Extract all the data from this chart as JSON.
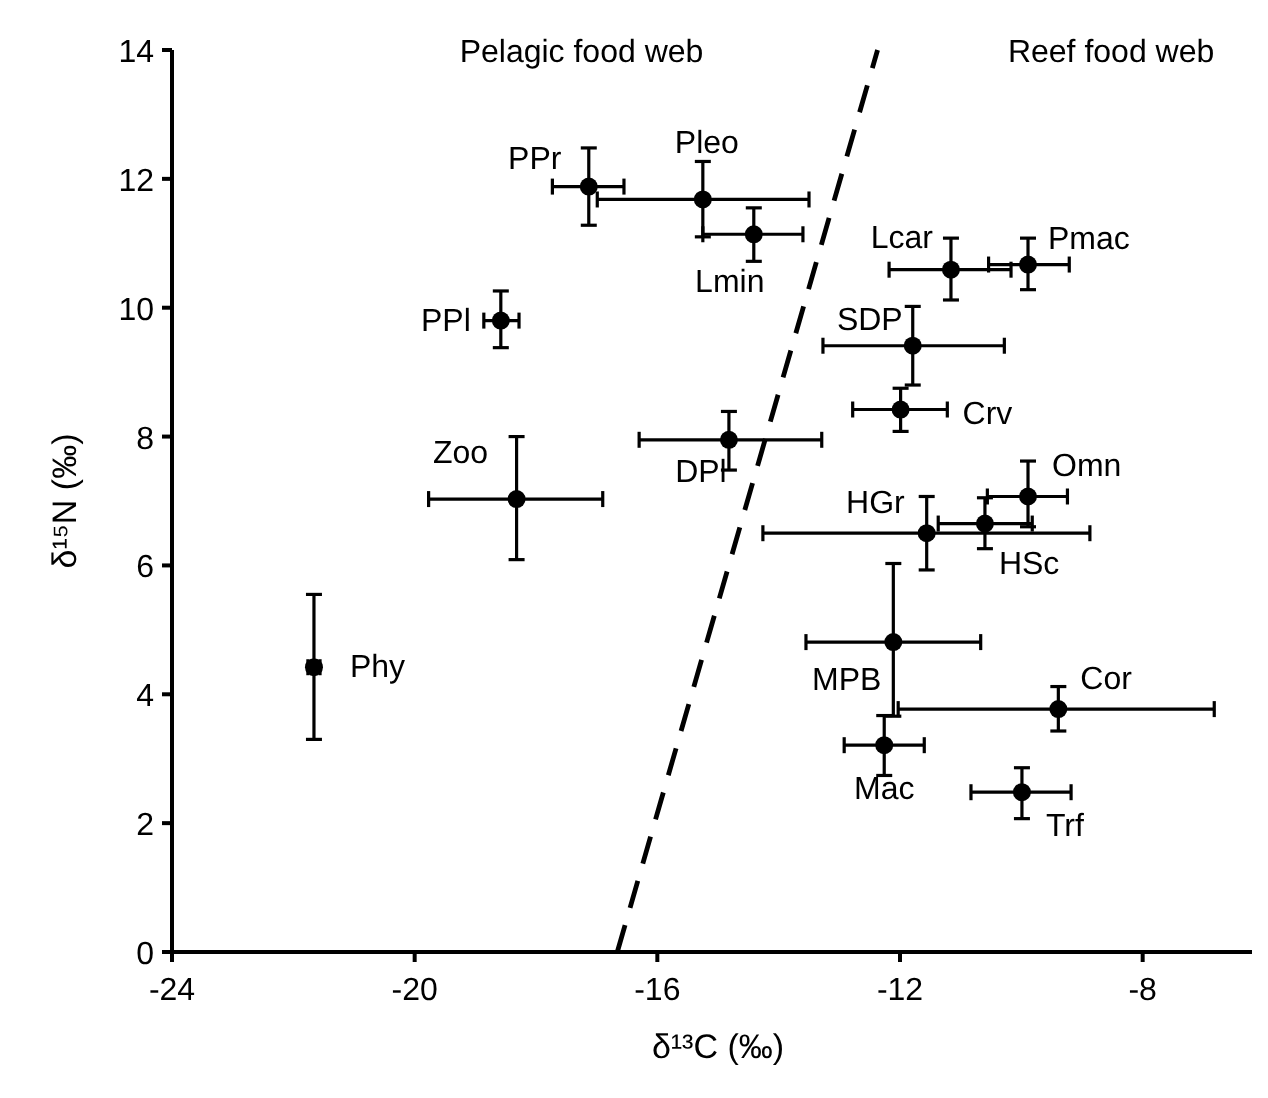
{
  "chart_data": {
    "type": "scatter",
    "xlabel": "δ¹³C  (‰)",
    "ylabel": "δ¹⁵N  (‰)",
    "xlim": [
      -24,
      -6
    ],
    "xticks": [
      -24,
      -20,
      -16,
      -12,
      -8
    ],
    "ylim": [
      0,
      14
    ],
    "yticks": [
      0,
      2,
      4,
      6,
      8,
      10,
      12,
      14
    ],
    "grid": false,
    "series": [
      {
        "color": "#000000",
        "marker": "circle",
        "x": [
          -21.66,
          -18.32,
          -17.13,
          -18.58,
          -15.25,
          -14.41,
          -11.16,
          -9.89,
          -11.79,
          -11.99,
          -14.82,
          -9.89,
          -10.6,
          -11.56,
          -12.11,
          -9.39,
          -12.26,
          -9.99
        ],
        "values": [
          4.42,
          7.03,
          11.88,
          9.8,
          11.68,
          11.14,
          10.59,
          10.67,
          9.41,
          8.42,
          7.95,
          7.07,
          6.65,
          6.5,
          4.81,
          3.77,
          3.21,
          2.48
        ],
        "errors": [
          [
            3.3,
            5.55
          ],
          [
            6.09,
            8.0
          ],
          [
            11.28,
            12.48
          ],
          [
            9.38,
            10.26
          ],
          [
            11.1,
            12.27
          ],
          [
            10.72,
            11.55
          ],
          [
            10.12,
            11.08
          ],
          [
            10.28,
            11.08
          ],
          [
            8.8,
            10.02
          ],
          [
            8.08,
            8.75
          ],
          [
            7.48,
            8.39
          ],
          [
            6.6,
            7.62
          ],
          [
            6.26,
            7.05
          ],
          [
            5.93,
            7.07
          ],
          [
            3.66,
            6.03
          ],
          [
            3.43,
            4.12
          ],
          [
            2.74,
            3.67
          ],
          [
            2.07,
            2.86
          ]
        ],
        "xerrors": [
          [
            -21.76,
            -21.56
          ],
          [
            -19.77,
            -16.9
          ],
          [
            -17.73,
            -16.55
          ],
          [
            -18.86,
            -18.28
          ],
          [
            -16.99,
            -13.5
          ],
          [
            -15.25,
            -13.6
          ],
          [
            -12.18,
            -10.17
          ],
          [
            -10.54,
            -9.21
          ],
          [
            -13.27,
            -10.28
          ],
          [
            -12.78,
            -11.22
          ],
          [
            -16.3,
            -13.29
          ],
          [
            -10.56,
            -9.24
          ],
          [
            -11.37,
            -9.82
          ],
          [
            -14.26,
            -8.87
          ],
          [
            -13.55,
            -10.67
          ],
          [
            -12.03,
            -6.82
          ],
          [
            -12.92,
            -11.6
          ],
          [
            -10.83,
            -9.18
          ]
        ]
      },
      {
        "type": "line",
        "color": "#000000",
        "line_style": "dashed",
        "marker": "none",
        "x": [
          -16.66,
          -12.37
        ],
        "values": [
          0,
          14
        ]
      }
    ],
    "annotations": [
      "Pelagic food web",
      "Reef food web",
      {
        "text": "Phy",
        "x": -21.66,
        "y": 4.42
      },
      {
        "text": "Zoo",
        "x": -18.32,
        "y": 7.03
      },
      {
        "text": "PPr",
        "x": -17.13,
        "y": 11.88
      },
      {
        "text": "PPl",
        "x": -18.58,
        "y": 9.8
      },
      {
        "text": "Pleo",
        "x": -15.25,
        "y": 11.68
      },
      {
        "text": "Lmin",
        "x": -14.41,
        "y": 11.14
      },
      {
        "text": "Lcar",
        "x": -11.16,
        "y": 10.59
      },
      {
        "text": "Pmac",
        "x": -9.89,
        "y": 10.67
      },
      {
        "text": "SDP",
        "x": -11.79,
        "y": 9.41
      },
      {
        "text": "Crv",
        "x": -11.99,
        "y": 8.42
      },
      {
        "text": "DPl",
        "x": -14.82,
        "y": 7.95
      },
      {
        "text": "Omn",
        "x": -9.89,
        "y": 7.07
      },
      {
        "text": "HSc",
        "x": -10.6,
        "y": 6.65
      },
      {
        "text": "HGr",
        "x": -11.56,
        "y": 6.5
      },
      {
        "text": "MPB",
        "x": -12.11,
        "y": 4.81
      },
      {
        "text": "Cor",
        "x": -9.39,
        "y": 3.77
      },
      {
        "text": "Mac",
        "x": -12.26,
        "y": 3.21
      },
      {
        "text": "Trf",
        "x": -9.99,
        "y": 2.48
      }
    ]
  }
}
